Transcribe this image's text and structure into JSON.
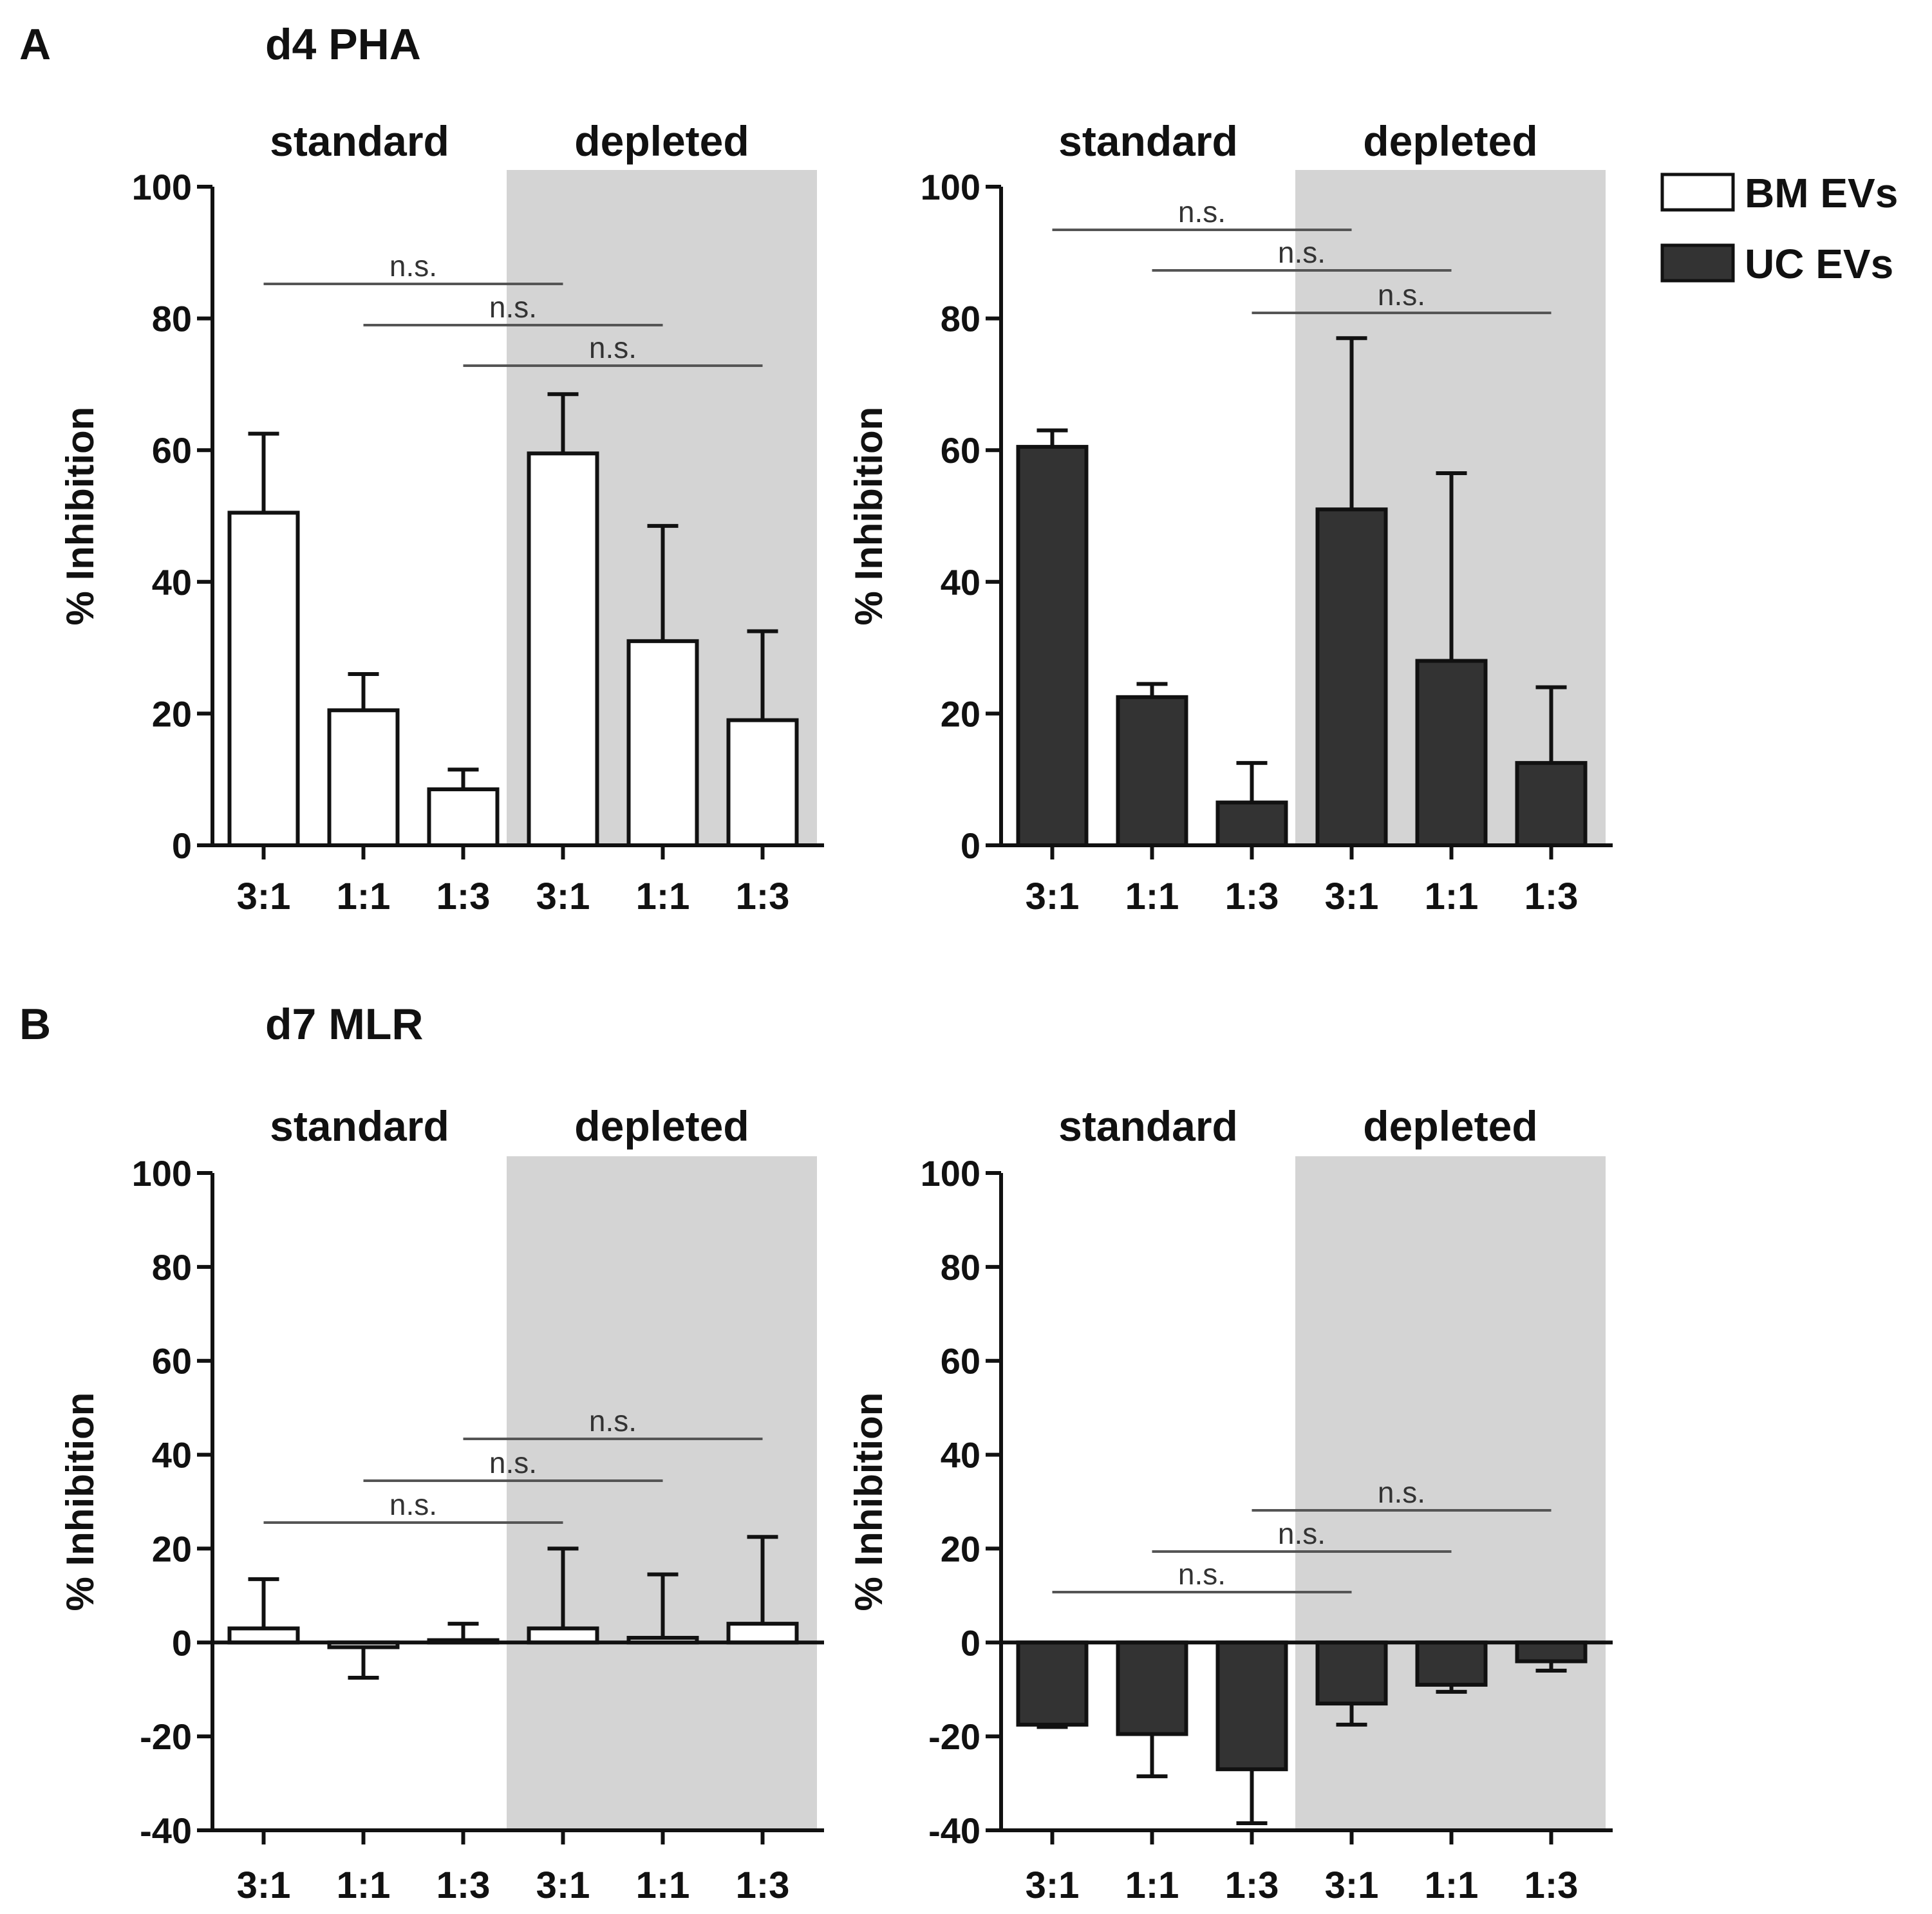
{
  "figure": {
    "panelA": {
      "letter": "A",
      "title": "d4 PHA"
    },
    "panelB": {
      "letter": "B",
      "title": "d7 MLR"
    }
  },
  "legend": {
    "items": [
      {
        "label": "BM EVs",
        "color": "#ffffff"
      },
      {
        "label": "UC EVs",
        "color": "#333333"
      }
    ]
  },
  "chart_data": [
    {
      "type": "bar",
      "panel": "A",
      "title": "d4 PHA",
      "ylabel": "% Inhibition",
      "ylim": [
        0,
        100
      ],
      "yticks": [
        0,
        20,
        40,
        60,
        80,
        100
      ],
      "group_labels": [
        "standard",
        "depleted"
      ],
      "categories": [
        "3:1",
        "1:1",
        "1:3",
        "3:1",
        "1:1",
        "1:3"
      ],
      "series": [
        {
          "name": "BM EVs",
          "color": "#ffffff",
          "values": [
            50.5,
            20.5,
            8.5,
            59.5,
            31,
            19
          ],
          "errors": [
            12,
            5.5,
            3,
            9,
            17.5,
            13.5
          ]
        }
      ],
      "significance": [
        {
          "from": 0,
          "to": 3,
          "label": "n.s."
        },
        {
          "from": 1,
          "to": 4,
          "label": "n.s."
        },
        {
          "from": 2,
          "to": 5,
          "label": "n.s."
        }
      ]
    },
    {
      "type": "bar",
      "panel": "A",
      "title": "d4 PHA",
      "ylabel": "% Inhibition",
      "ylim": [
        0,
        100
      ],
      "yticks": [
        0,
        20,
        40,
        60,
        80,
        100
      ],
      "group_labels": [
        "standard",
        "depleted"
      ],
      "categories": [
        "3:1",
        "1:1",
        "1:3",
        "3:1",
        "1:1",
        "1:3"
      ],
      "series": [
        {
          "name": "UC EVs",
          "color": "#333333",
          "values": [
            60.5,
            22.5,
            6.5,
            51,
            28,
            12.5
          ],
          "errors": [
            2.5,
            2,
            6,
            26,
            28.5,
            11.5
          ]
        }
      ],
      "significance": [
        {
          "from": 0,
          "to": 3,
          "label": "n.s."
        },
        {
          "from": 1,
          "to": 4,
          "label": "n.s."
        },
        {
          "from": 2,
          "to": 5,
          "label": "n.s."
        }
      ]
    },
    {
      "type": "bar",
      "panel": "B",
      "title": "d7 MLR",
      "ylabel": "% Inhibition",
      "ylim": [
        -40,
        100
      ],
      "yticks": [
        -40,
        -20,
        0,
        20,
        40,
        60,
        80,
        100
      ],
      "group_labels": [
        "standard",
        "depleted"
      ],
      "categories": [
        "3:1",
        "1:1",
        "1:3",
        "3:1",
        "1:1",
        "1:3"
      ],
      "series": [
        {
          "name": "BM EVs",
          "color": "#ffffff",
          "values": [
            3,
            -1,
            0.5,
            3,
            1,
            4
          ],
          "errors": [
            10.5,
            6.5,
            3.5,
            17,
            13.5,
            18.5
          ]
        }
      ],
      "significance": [
        {
          "from": 0,
          "to": 3,
          "label": "n.s."
        },
        {
          "from": 1,
          "to": 4,
          "label": "n.s."
        },
        {
          "from": 2,
          "to": 5,
          "label": "n.s."
        }
      ]
    },
    {
      "type": "bar",
      "panel": "B",
      "title": "d7 MLR",
      "ylabel": "% Inhibition",
      "ylim": [
        -40,
        100
      ],
      "yticks": [
        -40,
        -20,
        0,
        20,
        40,
        60,
        80,
        100
      ],
      "group_labels": [
        "standard",
        "depleted"
      ],
      "categories": [
        "3:1",
        "1:1",
        "1:3",
        "3:1",
        "1:1",
        "1:3"
      ],
      "series": [
        {
          "name": "UC EVs",
          "color": "#333333",
          "values": [
            -17.5,
            -19.5,
            -27,
            -13,
            -9,
            -4
          ],
          "errors": [
            0.5,
            9,
            11.5,
            4.5,
            1.5,
            2
          ]
        }
      ],
      "significance": [
        {
          "from": 0,
          "to": 3,
          "label": "n.s."
        },
        {
          "from": 1,
          "to": 4,
          "label": "n.s."
        },
        {
          "from": 2,
          "to": 5,
          "label": "n.s."
        }
      ]
    }
  ]
}
